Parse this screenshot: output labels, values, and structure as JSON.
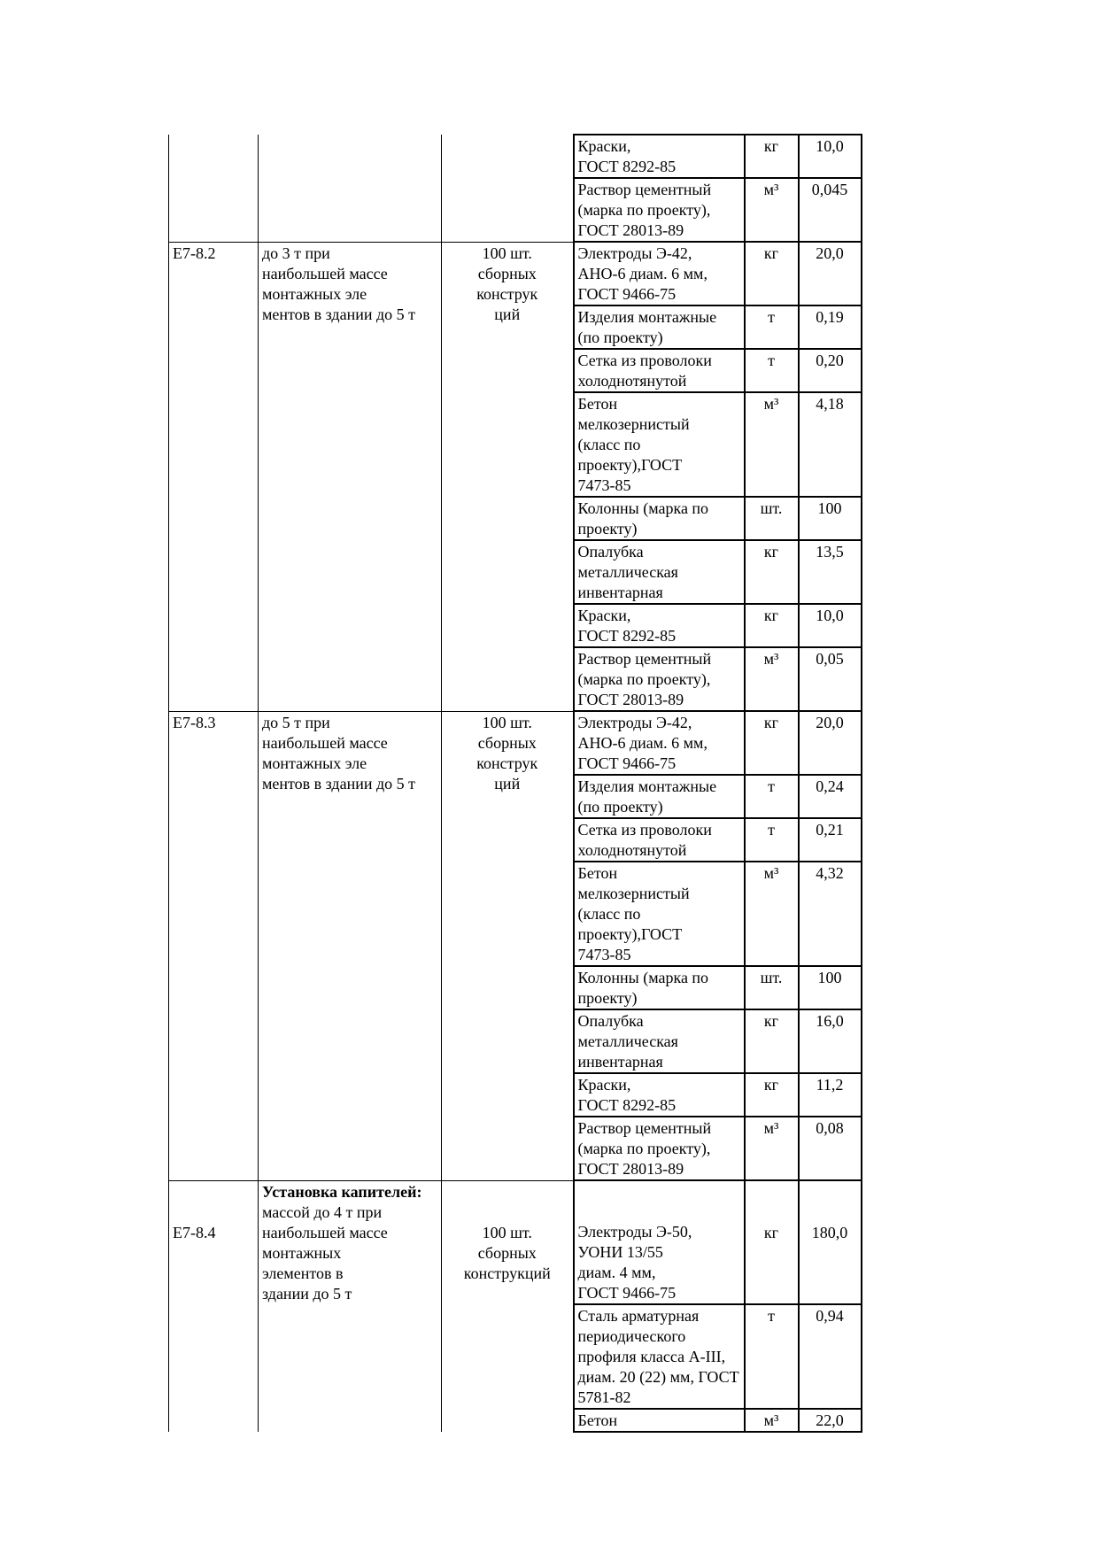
{
  "groups": [
    {
      "code": "",
      "description": "",
      "unit": "",
      "materials": [
        {
          "name": "Краски,\nГОСТ 8292-85",
          "unit": "кг",
          "qty": "10,0"
        },
        {
          "name": "Раствор цементный (марка по проекту), ГОСТ 28013-89",
          "unit": "м³",
          "qty": "0,045"
        }
      ]
    },
    {
      "code": "Е7-8.2",
      "description": "до 3 т при\nнаибольшей массе\nмонтажных эле\nментов в здании до 5 т",
      "unit": "100 шт.\nсборных\nконструк\nций",
      "materials": [
        {
          "name": "Электроды Э-42, АНО-6 диам. 6 мм, ГОСТ 9466-75",
          "unit": "кг",
          "qty": "20,0"
        },
        {
          "name": "Изделия монтажные (по проекту)",
          "unit": "т",
          "qty": "0,19"
        },
        {
          "name": "Сетка из проволоки холоднотянутой",
          "unit": "т",
          "qty": "0,20"
        },
        {
          "name": "Бетон\nмелкозернистый\n(класс по\nпроекту),ГОСТ\n7473-85",
          "unit": "м³",
          "qty": "4,18"
        },
        {
          "name": "Колонны (марка по проекту)",
          "unit": "шт.",
          "qty": "100"
        },
        {
          "name": "Опалубка\nметаллическая\nинвентарная",
          "unit": "кг",
          "qty": "13,5"
        },
        {
          "name": "Краски,\nГОСТ 8292-85",
          "unit": "кг",
          "qty": "10,0"
        },
        {
          "name": "Раствор цементный (марка по проекту), ГОСТ 28013-89",
          "unit": "м³",
          "qty": "0,05"
        }
      ]
    },
    {
      "code": "Е7-8.3",
      "description": "до 5 т при\nнаибольшей массе\nмонтажных эле\nментов в здании до 5 т",
      "unit": "100 шт.\nсборных\nконструк\nций",
      "materials": [
        {
          "name": "Электроды Э-42, АНО-6 диам. 6 мм, ГОСТ 9466-75",
          "unit": "кг",
          "qty": "20,0"
        },
        {
          "name": "Изделия монтажные (по проекту)",
          "unit": "т",
          "qty": "0,24"
        },
        {
          "name": "Сетка из проволоки холоднотянутой",
          "unit": "т",
          "qty": "0,21"
        },
        {
          "name": "Бетон\nмелкозернистый\n(класс по\nпроекту),ГОСТ\n7473-85",
          "unit": "м³",
          "qty": "4,32"
        },
        {
          "name": "Колонны (марка по проекту)",
          "unit": "шт.",
          "qty": "100"
        },
        {
          "name": "Опалубка\nметаллическая\nинвентарная",
          "unit": "кг",
          "qty": "16,0"
        },
        {
          "name": "Краски,\nГОСТ 8292-85",
          "unit": "кг",
          "qty": "11,2"
        },
        {
          "name": "Раствор цементный (марка по проекту), ГОСТ 28013-89",
          "unit": "м³",
          "qty": "0,08"
        }
      ]
    },
    {
      "code": "Е7-8.4",
      "description_bold": "Установка капителей:",
      "description": "массой до 4 т при\nнаибольшей массе\nмонтажных\nэлементов в\nздании до 5 т",
      "unit": "100 шт.\nсборных\nконструкций",
      "materials": [
        {
          "name": "Электроды Э-50,\nУОНИ 13/55\nдиам. 4 мм,\nГОСТ 9466-75",
          "unit": "кг",
          "qty": "180,0"
        },
        {
          "name": "Сталь арматурная периодического профиля класса А-III, диам. 20 (22) мм, ГОСТ 5781-82",
          "unit": "т",
          "qty": "0,94"
        },
        {
          "name": "Бетон",
          "unit": "м³",
          "qty": "22,0"
        }
      ]
    }
  ]
}
